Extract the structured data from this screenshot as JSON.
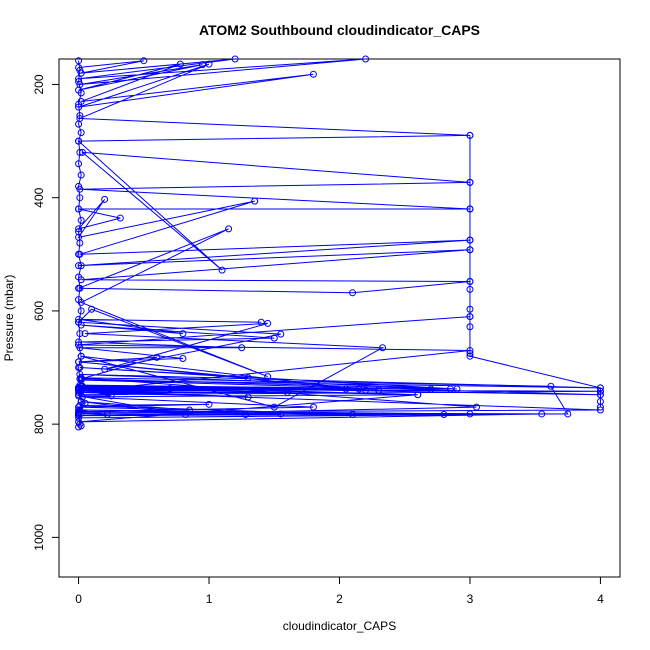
{
  "chart_data": {
    "type": "line",
    "title": "ATOM2 Southbound cloudindicator_CAPS",
    "xlabel": "cloudindicator_CAPS",
    "ylabel": "Pressure (mbar)",
    "xlim": [
      -0.15,
      4.15
    ],
    "ylim": [
      1070,
      155
    ],
    "y_reversed": true,
    "xticks": [
      0,
      1,
      2,
      3,
      4
    ],
    "yticks": [
      200,
      400,
      600,
      800,
      1000
    ],
    "grid": false,
    "legend": "none",
    "series": [
      {
        "color": "#0000ff",
        "marker": "open-circle",
        "points": [
          [
            0.02,
            803
          ],
          [
            0.0,
            782
          ],
          [
            0.05,
            763
          ],
          [
            0.0,
            748
          ],
          [
            4.0,
            742
          ],
          [
            0.0,
            738
          ],
          [
            0.03,
            733
          ],
          [
            4.0,
            748
          ],
          [
            0.02,
            722
          ],
          [
            4.0,
            736
          ],
          [
            0.01,
            712
          ],
          [
            2.9,
            738
          ],
          [
            0.01,
            700
          ],
          [
            1.3,
            718
          ],
          [
            0.0,
            690
          ],
          [
            2.2,
            740
          ],
          [
            0.02,
            680
          ],
          [
            1.5,
            770
          ],
          [
            2.33,
            665
          ],
          [
            0.05,
            640
          ],
          [
            1.45,
            622
          ],
          [
            0.2,
            703
          ],
          [
            1.55,
            641
          ],
          [
            0.0,
            620
          ],
          [
            0.1,
            597
          ],
          [
            1.45,
            716
          ],
          [
            0.02,
            585
          ],
          [
            1.15,
            455
          ],
          [
            0.0,
            560
          ],
          [
            2.1,
            568
          ],
          [
            3.0,
            548
          ],
          [
            0.02,
            545
          ],
          [
            3.0,
            492
          ],
          [
            0.0,
            520
          ],
          [
            3.0,
            475
          ],
          [
            0.01,
            500
          ],
          [
            1.35,
            406
          ],
          [
            0.0,
            470
          ],
          [
            0.2,
            403
          ],
          [
            0.0,
            455
          ],
          [
            0.32,
            436
          ],
          [
            0.0,
            420
          ],
          [
            3.0,
            420
          ],
          [
            0.01,
            385
          ],
          [
            3.0,
            373
          ],
          [
            0.03,
            320
          ],
          [
            1.1,
            528
          ],
          [
            0.0,
            300
          ],
          [
            3.0,
            290
          ],
          [
            0.01,
            260
          ],
          [
            1.0,
            164
          ],
          [
            0.0,
            240
          ],
          [
            1.8,
            182
          ],
          [
            0.02,
            230
          ],
          [
            0.78,
            164
          ],
          [
            0.0,
            210
          ],
          [
            0.95,
            165
          ],
          [
            0.01,
            200
          ],
          [
            2.2,
            155
          ],
          [
            0.0,
            190
          ],
          [
            1.2,
            155
          ],
          [
            0.02,
            180
          ],
          [
            0.5,
            158
          ],
          [
            0.0,
            170
          ]
        ]
      },
      {
        "color": "#0000ff",
        "marker": "open-circle",
        "points": [
          [
            3.0,
            610
          ],
          [
            0.0,
            660
          ],
          [
            3.0,
            670
          ],
          [
            0.02,
            742
          ],
          [
            4.0,
            775
          ],
          [
            0.0,
            779
          ],
          [
            3.75,
            782
          ],
          [
            3.62,
            733
          ],
          [
            0.02,
            718
          ],
          [
            3.05,
            770
          ],
          [
            0.0,
            785
          ],
          [
            3.0,
            782
          ],
          [
            0.01,
            775
          ],
          [
            2.8,
            783
          ],
          [
            0.0,
            789
          ],
          [
            3.55,
            782
          ],
          [
            0.0,
            796
          ],
          [
            2.6,
            748
          ],
          [
            0.03,
            752
          ],
          [
            1.8,
            770
          ],
          [
            0.01,
            778
          ],
          [
            1.55,
            782
          ],
          [
            0.0,
            784
          ],
          [
            1.28,
            783
          ],
          [
            0.02,
            781
          ],
          [
            0.22,
            783
          ],
          [
            0.0,
            775
          ],
          [
            2.1,
            783
          ],
          [
            0.01,
            767
          ],
          [
            1.0,
            765
          ],
          [
            0.0,
            770
          ],
          [
            0.85,
            775
          ],
          [
            0.02,
            760
          ],
          [
            0.82,
            783
          ],
          [
            0.0,
            750
          ],
          [
            0.25,
            750
          ],
          [
            0.01,
            738
          ],
          [
            0.5,
            738
          ],
          [
            0.0,
            736
          ],
          [
            0.7,
            737
          ],
          [
            0.02,
            740
          ],
          [
            1.3,
            752
          ],
          [
            0.0,
            744
          ],
          [
            1.6,
            744
          ],
          [
            0.01,
            742
          ],
          [
            2.05,
            738
          ],
          [
            0.0,
            740
          ],
          [
            2.15,
            738
          ],
          [
            0.02,
            733
          ],
          [
            2.3,
            740
          ],
          [
            0.0,
            736
          ],
          [
            2.6,
            748
          ],
          [
            0.01,
            731
          ],
          [
            2.7,
            738
          ],
          [
            0.0,
            735
          ],
          [
            2.85,
            738
          ],
          [
            0.02,
            720
          ],
          [
            0.6,
            682
          ],
          [
            0.0,
            690
          ],
          [
            0.8,
            684
          ],
          [
            0.01,
            665
          ],
          [
            1.25,
            665
          ],
          [
            0.0,
            655
          ],
          [
            1.5,
            648
          ],
          [
            0.02,
            625
          ],
          [
            0.8,
            640
          ],
          [
            0.0,
            615
          ],
          [
            1.4,
            620
          ]
        ]
      },
      {
        "color": "#0000ff",
        "marker": "open-circle",
        "points": [
          [
            3.0,
            290
          ],
          [
            3.0,
            373
          ],
          [
            3.0,
            420
          ],
          [
            3.0,
            475
          ],
          [
            3.0,
            492
          ],
          [
            3.0,
            548
          ],
          [
            3.0,
            562
          ],
          [
            3.0,
            597
          ],
          [
            3.0,
            610
          ],
          [
            3.0,
            628
          ],
          [
            3.0,
            675
          ],
          [
            3.0,
            680
          ],
          [
            4.0,
            736
          ],
          [
            4.0,
            742
          ],
          [
            4.0,
            748
          ],
          [
            4.0,
            760
          ],
          [
            4.0,
            770
          ]
        ]
      },
      {
        "color": "#0000ff",
        "marker": "open-circle",
        "points": [
          [
            0.0,
            158
          ],
          [
            0.01,
            175
          ],
          [
            0.0,
            195
          ],
          [
            0.02,
            215
          ],
          [
            0.0,
            235
          ],
          [
            0.01,
            255
          ],
          [
            0.0,
            270
          ],
          [
            0.02,
            285
          ],
          [
            0.0,
            300
          ],
          [
            0.01,
            320
          ],
          [
            0.0,
            340
          ],
          [
            0.02,
            360
          ],
          [
            0.0,
            380
          ],
          [
            0.01,
            400
          ],
          [
            0.0,
            420
          ],
          [
            0.02,
            440
          ],
          [
            0.0,
            460
          ],
          [
            0.01,
            480
          ],
          [
            0.0,
            500
          ],
          [
            0.02,
            520
          ],
          [
            0.0,
            540
          ],
          [
            0.01,
            560
          ],
          [
            0.0,
            580
          ],
          [
            0.02,
            600
          ],
          [
            0.0,
            620
          ],
          [
            0.01,
            640
          ],
          [
            0.0,
            660
          ],
          [
            0.02,
            680
          ],
          [
            0.0,
            700
          ],
          [
            0.01,
            720
          ],
          [
            0.0,
            740
          ],
          [
            0.02,
            760
          ],
          [
            0.0,
            780
          ],
          [
            0.01,
            800
          ],
          [
            0.0,
            805
          ]
        ]
      }
    ]
  }
}
